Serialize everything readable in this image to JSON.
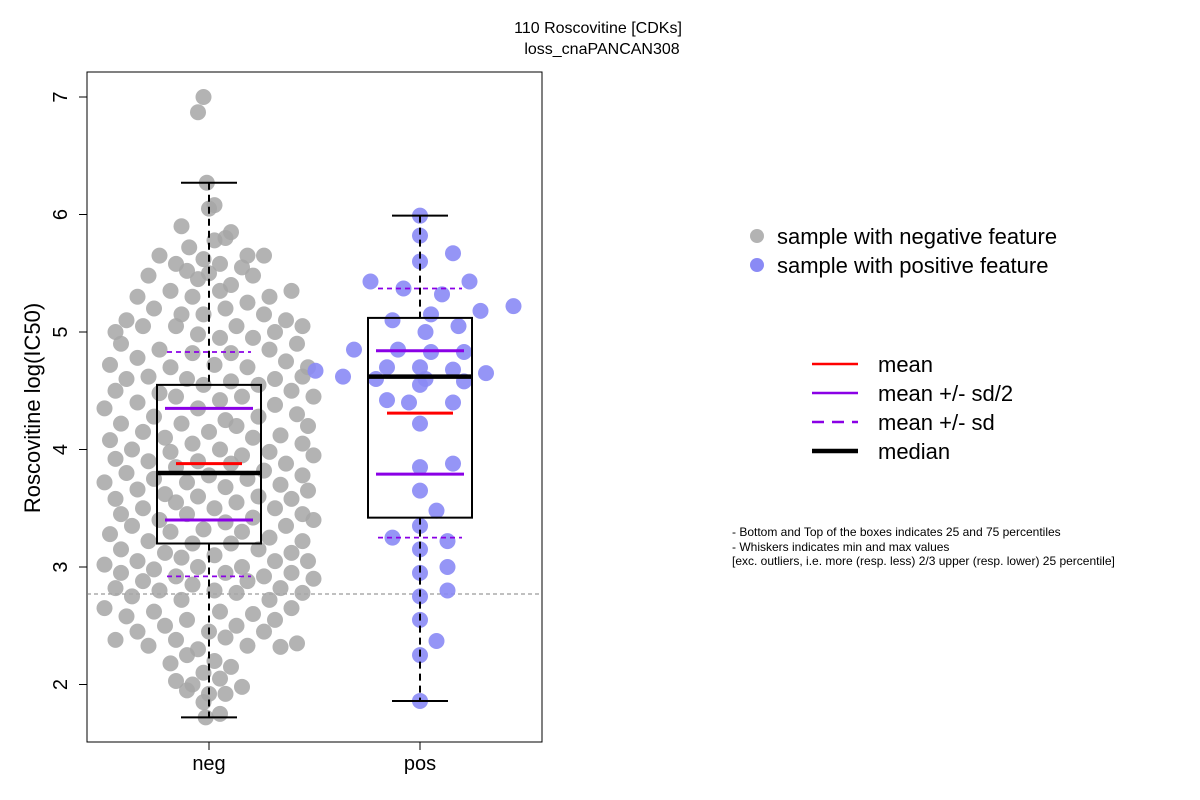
{
  "chart_data": {
    "type": "scatter",
    "title": "110 Roscovitine [CDKs]",
    "subtitle": "loss_cnaPANCAN308",
    "ylabel": "Roscovitine log(IC50)",
    "xlabel": "",
    "categories": [
      "neg",
      "pos"
    ],
    "ylim": [
      1.55,
      7.25
    ],
    "yticks": [
      2,
      3,
      4,
      5,
      6,
      7
    ],
    "threshold_line": 2.77,
    "colors": {
      "neg_points": "#a6a6a6",
      "pos_points": "#8a8af5",
      "mean": "#ff0000",
      "sd": "#8a00e6",
      "median": "#000000"
    },
    "groups": [
      {
        "name": "neg",
        "box": {
          "q1": 3.2,
          "q3": 4.55
        },
        "median": 3.8,
        "mean": 3.88,
        "sd_half_upper": 4.35,
        "sd_half_lower": 3.4,
        "sd_upper": 4.83,
        "sd_lower": 2.92,
        "whisker_min": 1.72,
        "whisker_max": 6.27,
        "points": [
          [
            -0.05,
            7.0
          ],
          [
            -0.1,
            6.87
          ],
          [
            -0.02,
            6.27
          ],
          [
            0.05,
            6.08
          ],
          [
            0.0,
            6.05
          ],
          [
            -0.25,
            5.9
          ],
          [
            0.2,
            5.85
          ],
          [
            0.15,
            5.8
          ],
          [
            -0.18,
            5.72
          ],
          [
            0.05,
            5.78
          ],
          [
            -0.45,
            5.65
          ],
          [
            0.35,
            5.65
          ],
          [
            -0.05,
            5.62
          ],
          [
            0.3,
            5.55
          ],
          [
            -0.3,
            5.58
          ],
          [
            0.5,
            5.65
          ],
          [
            -0.55,
            5.48
          ],
          [
            -0.2,
            5.52
          ],
          [
            0.1,
            5.58
          ],
          [
            0.4,
            5.48
          ],
          [
            -0.1,
            5.45
          ],
          [
            0.0,
            5.5
          ],
          [
            -0.65,
            5.3
          ],
          [
            0.55,
            5.3
          ],
          [
            0.2,
            5.4
          ],
          [
            -0.35,
            5.35
          ],
          [
            0.75,
            5.35
          ],
          [
            0.1,
            5.35
          ],
          [
            -0.15,
            5.3
          ],
          [
            0.35,
            5.25
          ],
          [
            -0.5,
            5.2
          ],
          [
            -0.75,
            5.1
          ],
          [
            0.7,
            5.1
          ],
          [
            -0.25,
            5.15
          ],
          [
            0.15,
            5.2
          ],
          [
            0.5,
            5.15
          ],
          [
            -0.05,
            5.15
          ],
          [
            0.85,
            5.05
          ],
          [
            -0.85,
            5.0
          ],
          [
            0.6,
            5.0
          ],
          [
            -0.6,
            5.05
          ],
          [
            -0.3,
            5.05
          ],
          [
            0.25,
            5.05
          ],
          [
            -0.1,
            4.98
          ],
          [
            0.1,
            4.95
          ],
          [
            0.4,
            4.95
          ],
          [
            0.8,
            4.9
          ],
          [
            -0.8,
            4.9
          ],
          [
            -0.45,
            4.85
          ],
          [
            0.55,
            4.85
          ],
          [
            -0.15,
            4.82
          ],
          [
            0.2,
            4.82
          ],
          [
            -0.65,
            4.78
          ],
          [
            0.7,
            4.75
          ],
          [
            0.9,
            4.7
          ],
          [
            -0.9,
            4.72
          ],
          [
            0.05,
            4.72
          ],
          [
            -0.35,
            4.7
          ],
          [
            0.35,
            4.7
          ],
          [
            -0.55,
            4.62
          ],
          [
            0.6,
            4.6
          ],
          [
            0.85,
            4.62
          ],
          [
            -0.75,
            4.6
          ],
          [
            -0.2,
            4.6
          ],
          [
            0.2,
            4.58
          ],
          [
            0.45,
            4.55
          ],
          [
            -0.05,
            4.55
          ],
          [
            -0.85,
            4.5
          ],
          [
            0.75,
            4.5
          ],
          [
            -0.45,
            4.48
          ],
          [
            0.95,
            4.45
          ],
          [
            0.3,
            4.45
          ],
          [
            -0.3,
            4.45
          ],
          [
            0.1,
            4.42
          ],
          [
            -0.65,
            4.4
          ],
          [
            0.6,
            4.38
          ],
          [
            -0.95,
            4.35
          ],
          [
            -0.1,
            4.35
          ],
          [
            0.8,
            4.3
          ],
          [
            -0.5,
            4.28
          ],
          [
            0.45,
            4.28
          ],
          [
            -0.8,
            4.22
          ],
          [
            0.15,
            4.25
          ],
          [
            -0.25,
            4.22
          ],
          [
            0.25,
            4.2
          ],
          [
            0.9,
            4.2
          ],
          [
            -0.6,
            4.15
          ],
          [
            0.65,
            4.12
          ],
          [
            0.0,
            4.15
          ],
          [
            -0.4,
            4.1
          ],
          [
            0.4,
            4.1
          ],
          [
            -0.9,
            4.08
          ],
          [
            0.85,
            4.05
          ],
          [
            -0.15,
            4.05
          ],
          [
            -0.7,
            4.0
          ],
          [
            0.1,
            4.0
          ],
          [
            0.55,
            3.98
          ],
          [
            -0.35,
            3.98
          ],
          [
            0.3,
            3.95
          ],
          [
            0.95,
            3.95
          ],
          [
            -0.85,
            3.92
          ],
          [
            -0.55,
            3.9
          ],
          [
            0.7,
            3.88
          ],
          [
            -0.1,
            3.9
          ],
          [
            0.2,
            3.88
          ],
          [
            -0.3,
            3.85
          ],
          [
            0.5,
            3.82
          ],
          [
            -0.75,
            3.8
          ],
          [
            0.85,
            3.78
          ],
          [
            0.0,
            3.78
          ],
          [
            -0.5,
            3.75
          ],
          [
            0.35,
            3.75
          ],
          [
            -0.2,
            3.72
          ],
          [
            0.65,
            3.7
          ],
          [
            -0.95,
            3.72
          ],
          [
            0.15,
            3.68
          ],
          [
            -0.65,
            3.66
          ],
          [
            0.9,
            3.65
          ],
          [
            -0.4,
            3.62
          ],
          [
            0.45,
            3.6
          ],
          [
            -0.1,
            3.6
          ],
          [
            0.75,
            3.58
          ],
          [
            -0.85,
            3.58
          ],
          [
            0.25,
            3.55
          ],
          [
            -0.3,
            3.55
          ],
          [
            0.6,
            3.5
          ],
          [
            -0.6,
            3.5
          ],
          [
            0.05,
            3.5
          ],
          [
            -0.8,
            3.45
          ],
          [
            0.85,
            3.45
          ],
          [
            -0.2,
            3.45
          ],
          [
            0.4,
            3.42
          ],
          [
            -0.45,
            3.4
          ],
          [
            0.95,
            3.4
          ],
          [
            0.15,
            3.38
          ],
          [
            -0.7,
            3.35
          ],
          [
            0.7,
            3.35
          ],
          [
            -0.05,
            3.32
          ],
          [
            0.3,
            3.3
          ],
          [
            -0.35,
            3.3
          ],
          [
            -0.9,
            3.28
          ],
          [
            0.55,
            3.25
          ],
          [
            0.85,
            3.22
          ],
          [
            -0.55,
            3.22
          ],
          [
            -0.15,
            3.2
          ],
          [
            0.2,
            3.2
          ],
          [
            -0.8,
            3.15
          ],
          [
            0.45,
            3.15
          ],
          [
            0.75,
            3.12
          ],
          [
            -0.4,
            3.12
          ],
          [
            0.05,
            3.1
          ],
          [
            -0.25,
            3.08
          ],
          [
            0.6,
            3.05
          ],
          [
            -0.65,
            3.05
          ],
          [
            0.9,
            3.05
          ],
          [
            -0.95,
            3.02
          ],
          [
            0.3,
            3.0
          ],
          [
            -0.1,
            3.0
          ],
          [
            -0.5,
            2.98
          ],
          [
            0.75,
            2.95
          ],
          [
            -0.8,
            2.95
          ],
          [
            0.15,
            2.95
          ],
          [
            0.5,
            2.92
          ],
          [
            -0.3,
            2.92
          ],
          [
            0.95,
            2.9
          ],
          [
            -0.6,
            2.88
          ],
          [
            0.35,
            2.88
          ],
          [
            -0.15,
            2.85
          ],
          [
            0.65,
            2.82
          ],
          [
            -0.85,
            2.82
          ],
          [
            0.05,
            2.8
          ],
          [
            -0.45,
            2.8
          ],
          [
            0.85,
            2.78
          ],
          [
            -0.7,
            2.75
          ],
          [
            0.25,
            2.78
          ],
          [
            0.55,
            2.72
          ],
          [
            -0.25,
            2.72
          ],
          [
            -0.95,
            2.65
          ],
          [
            0.75,
            2.65
          ],
          [
            -0.5,
            2.62
          ],
          [
            0.1,
            2.62
          ],
          [
            0.4,
            2.6
          ],
          [
            -0.75,
            2.58
          ],
          [
            -0.2,
            2.55
          ],
          [
            0.6,
            2.55
          ],
          [
            0.25,
            2.5
          ],
          [
            -0.4,
            2.5
          ],
          [
            -0.65,
            2.45
          ],
          [
            0.0,
            2.45
          ],
          [
            0.5,
            2.45
          ],
          [
            -0.85,
            2.38
          ],
          [
            0.8,
            2.35
          ],
          [
            -0.3,
            2.38
          ],
          [
            0.15,
            2.4
          ],
          [
            -0.55,
            2.33
          ],
          [
            0.35,
            2.33
          ],
          [
            0.65,
            2.32
          ],
          [
            -0.1,
            2.3
          ],
          [
            -0.2,
            2.25
          ],
          [
            0.05,
            2.2
          ],
          [
            -0.35,
            2.18
          ],
          [
            0.2,
            2.15
          ],
          [
            -0.05,
            2.1
          ],
          [
            -0.3,
            2.03
          ],
          [
            0.1,
            2.05
          ],
          [
            -0.15,
            2.0
          ],
          [
            0.3,
            1.98
          ],
          [
            0.0,
            1.92
          ],
          [
            0.15,
            1.92
          ],
          [
            -0.2,
            1.95
          ],
          [
            -0.05,
            1.85
          ],
          [
            0.1,
            1.75
          ],
          [
            -0.03,
            1.72
          ]
        ]
      },
      {
        "name": "pos",
        "box": {
          "q1": 3.42,
          "q3": 5.12
        },
        "median": 4.62,
        "mean": 4.31,
        "sd_half_upper": 4.84,
        "sd_half_lower": 3.79,
        "sd_upper": 5.37,
        "sd_lower": 3.25,
        "whisker_min": 1.86,
        "whisker_max": 5.99,
        "points": [
          [
            0.0,
            5.99
          ],
          [
            0.0,
            5.82
          ],
          [
            0.3,
            5.67
          ],
          [
            0.0,
            5.6
          ],
          [
            -0.45,
            5.43
          ],
          [
            0.45,
            5.43
          ],
          [
            0.2,
            5.32
          ],
          [
            -0.15,
            5.37
          ],
          [
            0.85,
            5.22
          ],
          [
            0.55,
            5.18
          ],
          [
            0.1,
            5.15
          ],
          [
            -0.25,
            5.1
          ],
          [
            0.35,
            5.05
          ],
          [
            0.05,
            5.0
          ],
          [
            -0.6,
            4.85
          ],
          [
            -0.2,
            4.85
          ],
          [
            0.1,
            4.83
          ],
          [
            0.4,
            4.83
          ],
          [
            -0.3,
            4.7
          ],
          [
            0.0,
            4.7
          ],
          [
            0.3,
            4.68
          ],
          [
            -0.95,
            4.67
          ],
          [
            0.6,
            4.65
          ],
          [
            -0.7,
            4.62
          ],
          [
            -0.4,
            4.6
          ],
          [
            0.05,
            4.6
          ],
          [
            0.4,
            4.58
          ],
          [
            0.0,
            4.55
          ],
          [
            -0.3,
            4.42
          ],
          [
            -0.1,
            4.4
          ],
          [
            0.3,
            4.4
          ],
          [
            0.0,
            4.22
          ],
          [
            0.3,
            3.88
          ],
          [
            0.0,
            3.85
          ],
          [
            0.0,
            3.65
          ],
          [
            0.15,
            3.48
          ],
          [
            0.0,
            3.35
          ],
          [
            -0.25,
            3.25
          ],
          [
            0.25,
            3.22
          ],
          [
            0.0,
            3.15
          ],
          [
            0.25,
            3.0
          ],
          [
            0.0,
            2.95
          ],
          [
            0.25,
            2.8
          ],
          [
            0.0,
            2.75
          ],
          [
            0.0,
            2.55
          ],
          [
            0.15,
            2.37
          ],
          [
            0.0,
            2.25
          ],
          [
            0.0,
            1.86
          ]
        ]
      }
    ]
  },
  "legend": {
    "points": [
      {
        "label": "sample with negative feature",
        "color": "#b3b3b3"
      },
      {
        "label": "sample with positive feature",
        "color": "#8a8af5"
      }
    ],
    "lines": [
      {
        "label": "mean",
        "color": "#ff0000",
        "dashed": false,
        "thick": false
      },
      {
        "label": "mean +/- sd/2",
        "color": "#8a00e6",
        "dashed": false,
        "thick": false
      },
      {
        "label": "mean +/- sd",
        "color": "#8a00e6",
        "dashed": true,
        "thick": false
      },
      {
        "label": "median",
        "color": "#000000",
        "dashed": false,
        "thick": true
      }
    ]
  },
  "notes": [
    "- Bottom and Top of the boxes indicates 25 and 75 percentiles",
    "- Whiskers indicates min and max values",
    "[exc. outliers, i.e. more (resp. less) 2/3 upper (resp. lower) 25 percentile]"
  ]
}
